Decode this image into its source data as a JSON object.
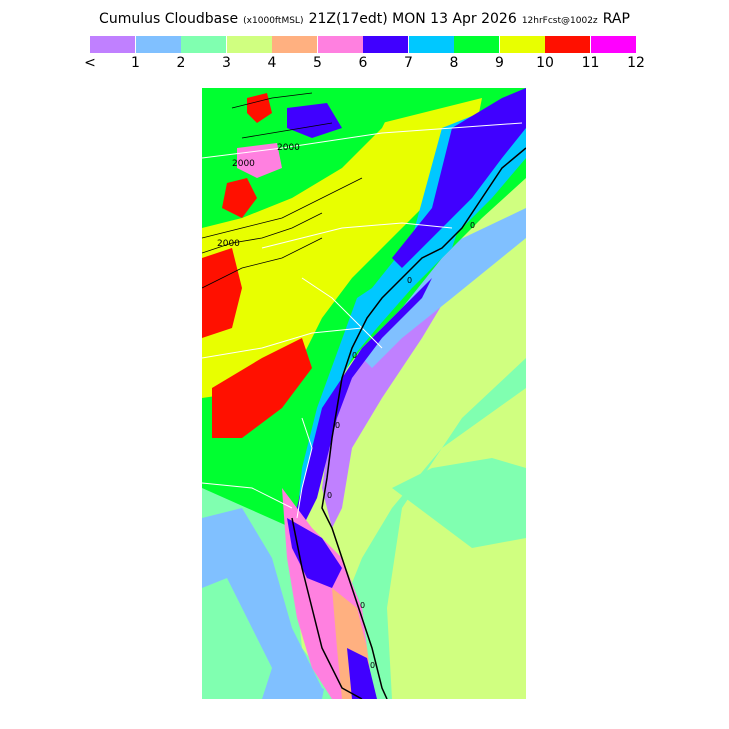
{
  "title": {
    "product": "Cumulus Cloudbase",
    "units": "(x1000ftMSL)",
    "valid": "21Z(17edt) MON 13 Apr 2026",
    "forecast": "12hrFcst@1002z",
    "model": "RAP"
  },
  "legend": {
    "colors": [
      "#c080ff",
      "#80c0ff",
      "#80ffb0",
      "#d0ff80",
      "#ffb080",
      "#ff80e0",
      "#4000ff",
      "#00c8ff",
      "#00ff30",
      "#e8ff00",
      "#ff1000",
      "#ff00ff"
    ],
    "tick_labels": [
      "<",
      "1",
      "2",
      "3",
      "4",
      "5",
      "6",
      "7",
      "8",
      "9",
      "10",
      "11",
      "12"
    ]
  },
  "map": {
    "contour_labels": [
      "2000",
      "2000",
      "2000"
    ],
    "coast_labels": [
      "0",
      "0",
      "0",
      "0",
      "0",
      "0",
      "0"
    ]
  }
}
